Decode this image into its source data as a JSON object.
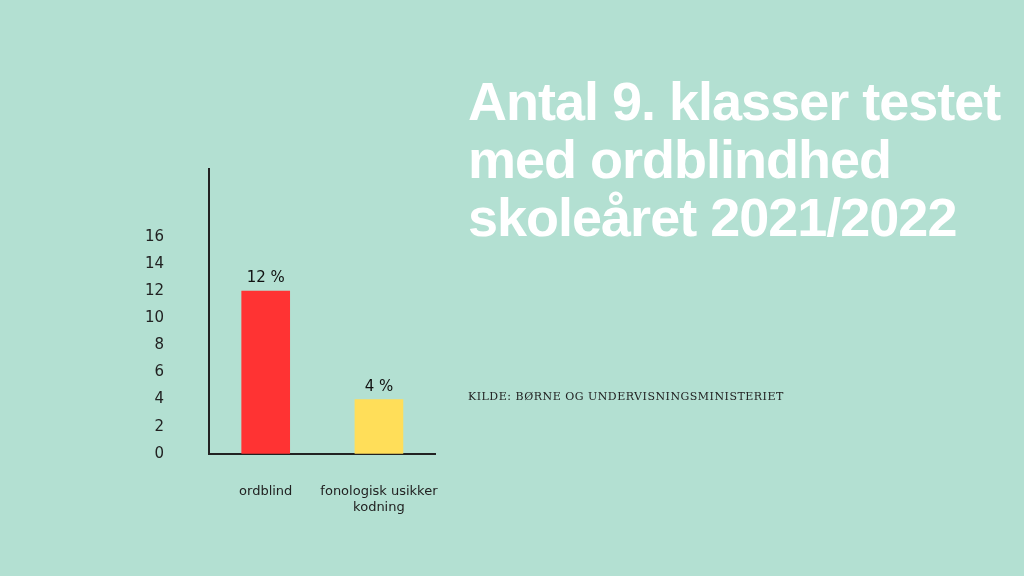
{
  "chart_data": {
    "type": "bar",
    "title": "Antal 9. klasser testet med ordblindhed skoleåret 2021/2022",
    "annotations": [
      "KILDE: BØRNE OG UNDERVISNINGSMINISTERIET"
    ],
    "categories": [
      "ordblind",
      "fonologisk usikker kodning"
    ],
    "values": [
      12,
      4
    ],
    "colors": [
      "#ff3333",
      "#ffde59"
    ],
    "value_labels": [
      "12 %",
      "4 %"
    ],
    "ylim": [
      0,
      21
    ],
    "yticks": [
      0,
      2,
      4,
      6,
      8,
      10,
      12,
      14,
      16
    ],
    "grid": false,
    "legend": false
  }
}
